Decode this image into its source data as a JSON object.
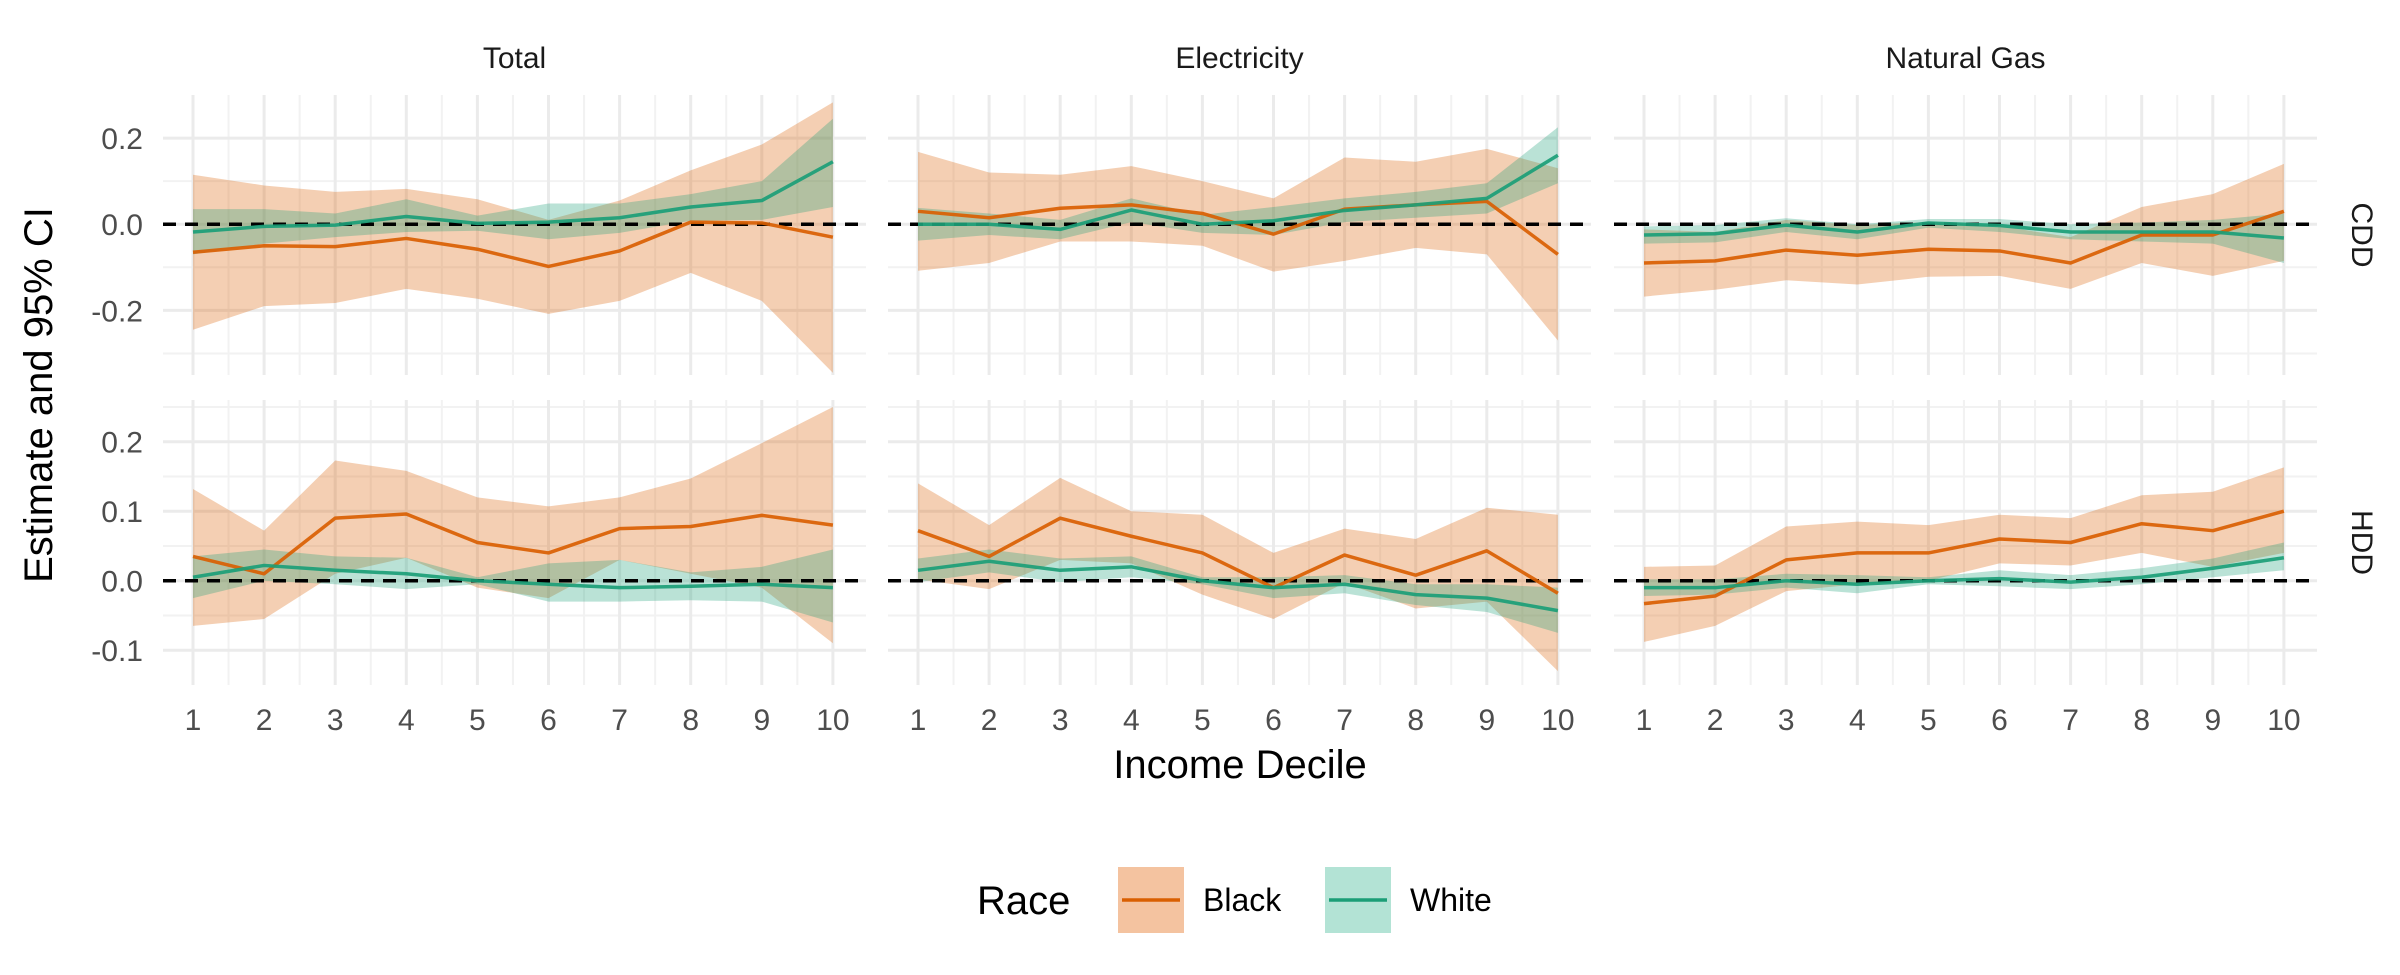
{
  "chart_data": {
    "type": "line",
    "title": "",
    "xlabel": "Income Decile",
    "ylabel": "Estimate and 95% CI",
    "x": [
      1,
      2,
      3,
      4,
      5,
      6,
      7,
      8,
      9,
      10
    ],
    "x_tick_labels": [
      "1",
      "2",
      "3",
      "4",
      "5",
      "6",
      "7",
      "8",
      "9",
      "10"
    ],
    "columns": [
      "Total",
      "Electricity",
      "Natural Gas"
    ],
    "rows": [
      "CDD",
      "HDD"
    ],
    "row_axes": [
      {
        "row": "CDD",
        "ylim": [
          -0.35,
          0.3
        ],
        "ticks": [
          -0.2,
          0.0,
          0.2
        ],
        "tick_labels": [
          "-0.2",
          "0.0",
          "0.2"
        ]
      },
      {
        "row": "HDD",
        "ylim": [
          -0.15,
          0.26
        ],
        "ticks": [
          -0.1,
          0.0,
          0.1,
          0.2
        ],
        "tick_labels": [
          "-0.1",
          "0.0",
          "0.1",
          "0.2"
        ]
      }
    ],
    "reference_line": 0,
    "grid": true,
    "legend": {
      "title": "Race",
      "position": "bottom",
      "entries": [
        {
          "label": "Black",
          "line_color": "#d95f02",
          "fill_color": "#f4c3a0"
        },
        {
          "label": "White",
          "line_color": "#1b9e77",
          "fill_color": "#b3e3d5"
        }
      ]
    },
    "panels": [
      {
        "row": "CDD",
        "column": "Total",
        "series": [
          {
            "name": "Black",
            "values": [
              -0.065,
              -0.05,
              -0.052,
              -0.033,
              -0.058,
              -0.098,
              -0.062,
              0.005,
              0.003,
              -0.03
            ],
            "lower": [
              -0.245,
              -0.19,
              -0.183,
              -0.15,
              -0.173,
              -0.208,
              -0.178,
              -0.113,
              -0.178,
              -0.345
            ],
            "upper": [
              0.115,
              0.09,
              0.075,
              0.082,
              0.058,
              0.01,
              0.055,
              0.125,
              0.185,
              0.283
            ]
          },
          {
            "name": "White",
            "values": [
              -0.018,
              -0.005,
              -0.002,
              0.018,
              0.002,
              0.005,
              0.015,
              0.04,
              0.055,
              0.145
            ],
            "lower": [
              -0.07,
              -0.045,
              -0.03,
              -0.018,
              -0.015,
              -0.035,
              -0.02,
              0.008,
              0.01,
              0.04
            ],
            "upper": [
              0.035,
              0.035,
              0.025,
              0.058,
              0.02,
              0.048,
              0.048,
              0.07,
              0.1,
              0.245
            ]
          }
        ]
      },
      {
        "row": "CDD",
        "column": "Electricity",
        "series": [
          {
            "name": "Black",
            "values": [
              0.03,
              0.015,
              0.037,
              0.045,
              0.025,
              -0.023,
              0.035,
              0.045,
              0.053,
              -0.07
            ],
            "lower": [
              -0.108,
              -0.09,
              -0.04,
              -0.04,
              -0.05,
              -0.11,
              -0.085,
              -0.055,
              -0.07,
              -0.27
            ],
            "upper": [
              0.168,
              0.12,
              0.115,
              0.135,
              0.1,
              0.06,
              0.155,
              0.145,
              0.175,
              0.13
            ]
          },
          {
            "name": "White",
            "values": [
              0.0,
              0.0,
              -0.012,
              0.033,
              0.0,
              0.008,
              0.032,
              0.045,
              0.06,
              0.16
            ],
            "lower": [
              -0.038,
              -0.025,
              -0.035,
              0.005,
              -0.02,
              -0.025,
              0.005,
              0.015,
              0.025,
              0.095
            ],
            "upper": [
              0.038,
              0.025,
              0.01,
              0.06,
              0.022,
              0.04,
              0.06,
              0.075,
              0.095,
              0.225
            ]
          }
        ]
      },
      {
        "row": "CDD",
        "column": "Natural Gas",
        "series": [
          {
            "name": "Black",
            "values": [
              -0.09,
              -0.085,
              -0.06,
              -0.072,
              -0.058,
              -0.062,
              -0.09,
              -0.025,
              -0.025,
              0.03
            ],
            "lower": [
              -0.168,
              -0.152,
              -0.13,
              -0.14,
              -0.122,
              -0.12,
              -0.15,
              -0.09,
              -0.12,
              -0.085
            ],
            "upper": [
              -0.012,
              -0.018,
              0.01,
              -0.002,
              0.005,
              -0.004,
              -0.03,
              0.04,
              0.07,
              0.14
            ]
          },
          {
            "name": "White",
            "values": [
              -0.025,
              -0.022,
              -0.002,
              -0.018,
              0.003,
              -0.003,
              -0.018,
              -0.018,
              -0.018,
              -0.032
            ],
            "lower": [
              -0.045,
              -0.042,
              -0.018,
              -0.035,
              -0.008,
              -0.018,
              -0.035,
              -0.04,
              -0.045,
              -0.09
            ],
            "upper": [
              -0.005,
              -0.002,
              0.014,
              0.0,
              0.012,
              0.012,
              0.0,
              0.004,
              0.01,
              0.025
            ]
          }
        ]
      },
      {
        "row": "HDD",
        "column": "Total",
        "series": [
          {
            "name": "Black",
            "values": [
              0.035,
              0.01,
              0.09,
              0.096,
              0.055,
              0.04,
              0.075,
              0.078,
              0.094,
              0.08
            ],
            "lower": [
              -0.065,
              -0.055,
              0.01,
              0.033,
              -0.01,
              -0.025,
              0.03,
              0.01,
              -0.01,
              -0.09
            ],
            "upper": [
              0.132,
              0.072,
              0.173,
              0.158,
              0.12,
              0.107,
              0.12,
              0.147,
              0.198,
              0.25
            ]
          },
          {
            "name": "White",
            "values": [
              0.005,
              0.022,
              0.015,
              0.01,
              0.0,
              -0.005,
              -0.01,
              -0.008,
              -0.005,
              -0.01
            ],
            "lower": [
              -0.025,
              0.0,
              -0.005,
              -0.012,
              -0.005,
              -0.03,
              -0.03,
              -0.028,
              -0.03,
              -0.06
            ],
            "upper": [
              0.035,
              0.045,
              0.035,
              0.033,
              0.005,
              0.025,
              0.03,
              0.012,
              0.02,
              0.045
            ]
          }
        ]
      },
      {
        "row": "HDD",
        "column": "Electricity",
        "series": [
          {
            "name": "Black",
            "values": [
              0.072,
              0.035,
              0.09,
              0.064,
              0.04,
              -0.01,
              0.037,
              0.008,
              0.043,
              -0.018
            ],
            "lower": [
              0.002,
              -0.012,
              0.03,
              0.025,
              -0.02,
              -0.055,
              -0.003,
              -0.04,
              -0.03,
              -0.13
            ],
            "upper": [
              0.14,
              0.08,
              0.148,
              0.1,
              0.095,
              0.04,
              0.075,
              0.06,
              0.105,
              0.095
            ]
          },
          {
            "name": "White",
            "values": [
              0.015,
              0.028,
              0.015,
              0.02,
              0.0,
              -0.01,
              -0.005,
              -0.02,
              -0.025,
              -0.043
            ],
            "lower": [
              -0.002,
              0.012,
              -0.002,
              0.005,
              -0.005,
              -0.025,
              -0.018,
              -0.035,
              -0.045,
              -0.075
            ],
            "upper": [
              0.032,
              0.045,
              0.032,
              0.035,
              0.005,
              0.005,
              0.008,
              -0.005,
              -0.005,
              -0.01
            ]
          }
        ]
      },
      {
        "row": "HDD",
        "column": "Natural Gas",
        "series": [
          {
            "name": "Black",
            "values": [
              -0.033,
              -0.022,
              0.03,
              0.04,
              0.04,
              0.06,
              0.055,
              0.082,
              0.072,
              0.1
            ],
            "lower": [
              -0.088,
              -0.065,
              -0.015,
              -0.005,
              0.0,
              0.025,
              0.022,
              0.04,
              0.02,
              0.04
            ],
            "upper": [
              0.02,
              0.022,
              0.078,
              0.085,
              0.08,
              0.095,
              0.09,
              0.123,
              0.128,
              0.163
            ]
          },
          {
            "name": "White",
            "values": [
              -0.01,
              -0.01,
              0.0,
              -0.005,
              0.0,
              0.003,
              -0.002,
              0.005,
              0.018,
              0.033
            ],
            "lower": [
              -0.022,
              -0.02,
              -0.01,
              -0.018,
              -0.005,
              -0.008,
              -0.012,
              -0.005,
              0.005,
              0.015
            ],
            "upper": [
              0.002,
              0.002,
              0.01,
              0.008,
              0.005,
              0.015,
              0.008,
              0.018,
              0.032,
              0.055
            ]
          }
        ]
      }
    ]
  }
}
